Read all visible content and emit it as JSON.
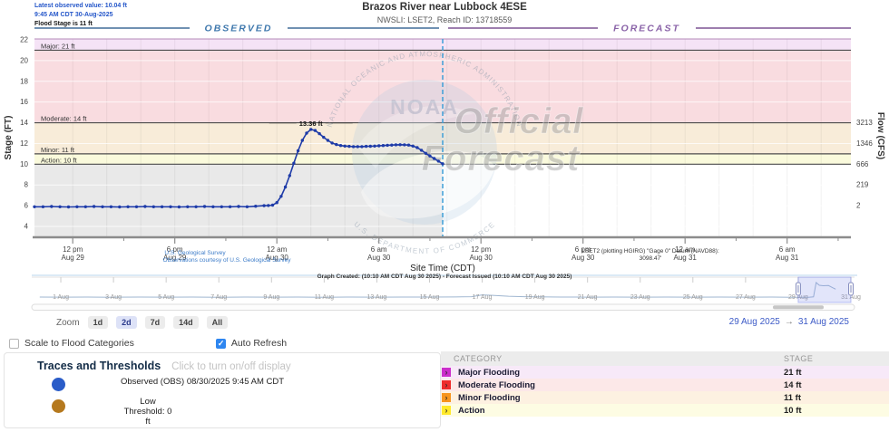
{
  "header": {
    "latest_observed": "Latest observed value: 10.04 ft",
    "latest_time": "9:45 AM CDT 30-Aug-2025",
    "flood_stage": "Flood Stage is 11 ft",
    "title": "Brazos River near Lubbock 4ESE",
    "subtitle": "NWSLI: LSET2, Reach ID: 13718559"
  },
  "annotations": {
    "usgs_link": "U.S. Geological Survey",
    "usgs_credit": "Observations courtesy of U.S. Geological Survey",
    "gage_info": "LSET2 (plotting HGIRG) \"Gage 0\" Datum (NAVD88):",
    "gage_value": "3098.47'",
    "site_time": "Site Time (CDT)",
    "graph_created": "Graph Created: (10:10 AM CDT Aug 30 2025) - Forecast Issued (10:10 AM CDT Aug 30 2025)"
  },
  "chart_data": {
    "type": "line",
    "title": "Brazos River near Lubbock 4ESE",
    "observed_label": "OBSERVED",
    "forecast_label": "FORECAST",
    "ylabel_left": "Stage (FT)",
    "ylabel_right": "Flow (CFS)",
    "xlabel": "Site Time (CDT)",
    "ylim": [
      3,
      22.1
    ],
    "window_hours": 48,
    "divider_hour": 24,
    "stage_ticks": [
      4,
      6,
      8,
      10,
      12,
      14,
      16,
      18,
      20,
      22
    ],
    "flow_ticks": [
      {
        "stage": 14,
        "label": "3213"
      },
      {
        "stage": 12,
        "label": "1346"
      },
      {
        "stage": 10,
        "label": "666"
      },
      {
        "stage": 8,
        "label": "219"
      },
      {
        "stage": 6,
        "label": "2"
      }
    ],
    "x_ticks": [
      {
        "t": 2.25,
        "top": "12 pm",
        "bottom": "Aug 29"
      },
      {
        "t": 8.25,
        "top": "6 pm",
        "bottom": "Aug 29"
      },
      {
        "t": 14.25,
        "top": "12 am",
        "bottom": "Aug 30"
      },
      {
        "t": 20.25,
        "top": "6 am",
        "bottom": "Aug 30"
      },
      {
        "t": 26.25,
        "top": "12 pm",
        "bottom": "Aug 30"
      },
      {
        "t": 32.25,
        "top": "6 pm",
        "bottom": "Aug 30"
      },
      {
        "t": 38.25,
        "top": "12 am",
        "bottom": "Aug 31"
      },
      {
        "t": 44.25,
        "top": "6 am",
        "bottom": "Aug 31"
      }
    ],
    "categories": [
      {
        "name": "Major",
        "stage": 21,
        "label": "Major: 21 ft",
        "band": "#f5e3f6"
      },
      {
        "name": "Moderate",
        "stage": 14,
        "label": "Moderate: 14 ft",
        "band": "#f9dce0"
      },
      {
        "name": "Minor",
        "stage": 11,
        "label": "Minor: 11 ft",
        "band": "#f8ecd9"
      },
      {
        "name": "Action",
        "stage": 10,
        "label": "Action: 10 ft",
        "band": "#fafadc"
      }
    ],
    "below_action_observed_fill": "#e9e9e9",
    "below_action_forecast_fill": "#ffffff",
    "peak_annotation": {
      "t": 16.25,
      "stage": 13.36,
      "label": "13.36 ft"
    },
    "series": [
      {
        "name": "Observed (OBS)",
        "color": "#1e3ba8",
        "points": [
          [
            0,
            5.9
          ],
          [
            0.5,
            5.9
          ],
          [
            1,
            5.92
          ],
          [
            1.5,
            5.9
          ],
          [
            2,
            5.88
          ],
          [
            2.5,
            5.9
          ],
          [
            3,
            5.9
          ],
          [
            3.5,
            5.92
          ],
          [
            4,
            5.9
          ],
          [
            4.5,
            5.9
          ],
          [
            5,
            5.88
          ],
          [
            5.5,
            5.9
          ],
          [
            6,
            5.9
          ],
          [
            6.5,
            5.92
          ],
          [
            7,
            5.9
          ],
          [
            7.5,
            5.9
          ],
          [
            8,
            5.9
          ],
          [
            8.5,
            5.88
          ],
          [
            9,
            5.9
          ],
          [
            9.5,
            5.9
          ],
          [
            10,
            5.92
          ],
          [
            10.5,
            5.9
          ],
          [
            11,
            5.9
          ],
          [
            11.5,
            5.9
          ],
          [
            12,
            5.92
          ],
          [
            12.5,
            5.9
          ],
          [
            13,
            5.95
          ],
          [
            13.5,
            6.0
          ],
          [
            13.75,
            6.02
          ],
          [
            14,
            6.05
          ],
          [
            14.25,
            6.3
          ],
          [
            14.5,
            6.9
          ],
          [
            14.75,
            7.8
          ],
          [
            15,
            8.9
          ],
          [
            15.25,
            10.1
          ],
          [
            15.5,
            11.3
          ],
          [
            15.75,
            12.3
          ],
          [
            16,
            13.0
          ],
          [
            16.25,
            13.36
          ],
          [
            16.5,
            13.25
          ],
          [
            16.75,
            12.95
          ],
          [
            17,
            12.6
          ],
          [
            17.25,
            12.3
          ],
          [
            17.5,
            12.05
          ],
          [
            17.75,
            11.9
          ],
          [
            18,
            11.8
          ],
          [
            18.25,
            11.75
          ],
          [
            18.5,
            11.72
          ],
          [
            18.75,
            11.7
          ],
          [
            19,
            11.7
          ],
          [
            19.25,
            11.7
          ],
          [
            19.5,
            11.72
          ],
          [
            19.75,
            11.73
          ],
          [
            20,
            11.75
          ],
          [
            20.25,
            11.78
          ],
          [
            20.5,
            11.8
          ],
          [
            20.75,
            11.83
          ],
          [
            21,
            11.85
          ],
          [
            21.25,
            11.87
          ],
          [
            21.5,
            11.88
          ],
          [
            21.75,
            11.87
          ],
          [
            22,
            11.85
          ],
          [
            22.25,
            11.75
          ],
          [
            22.5,
            11.6
          ],
          [
            22.75,
            11.35
          ],
          [
            23,
            11.05
          ],
          [
            23.25,
            10.8
          ],
          [
            23.5,
            10.55
          ],
          [
            23.75,
            10.3
          ],
          [
            24,
            10.04
          ]
        ]
      }
    ],
    "watermark": {
      "noaa_label": "NOAA",
      "arc_top": "NATIONAL OCEANIC AND ATMOSPHERIC ADMINISTRATION",
      "arc_bottom": "U.S. DEPARTMENT OF COMMERCE",
      "stamp_line1": "Official",
      "stamp_line2": "Forecast"
    }
  },
  "overview": {
    "day_labels": [
      {
        "d": 1,
        "label": "1 Aug"
      },
      {
        "d": 3,
        "label": "3 Aug"
      },
      {
        "d": 5,
        "label": "5 Aug"
      },
      {
        "d": 7,
        "label": "7 Aug"
      },
      {
        "d": 9,
        "label": "9 Aug"
      },
      {
        "d": 11,
        "label": "11 Aug"
      },
      {
        "d": 13,
        "label": "13 Aug"
      },
      {
        "d": 15,
        "label": "15 Aug"
      },
      {
        "d": 17,
        "label": "17 Aug"
      },
      {
        "d": 19,
        "label": "19 Aug"
      },
      {
        "d": 21,
        "label": "21 Aug"
      },
      {
        "d": 23,
        "label": "23 Aug"
      },
      {
        "d": 25,
        "label": "25 Aug"
      },
      {
        "d": 27,
        "label": "27 Aug"
      },
      {
        "d": 29,
        "label": "29 Aug"
      },
      {
        "d": 31,
        "label": "31 Aug"
      }
    ],
    "points": [
      [
        0.2,
        6
      ],
      [
        1,
        5.95
      ],
      [
        2,
        6
      ],
      [
        3,
        5.9
      ],
      [
        4,
        6
      ],
      [
        5,
        5.95
      ],
      [
        6,
        6
      ],
      [
        7,
        5.9
      ],
      [
        8,
        6
      ],
      [
        9,
        5.95
      ],
      [
        10,
        6
      ],
      [
        11,
        5.9
      ],
      [
        12,
        6
      ],
      [
        13,
        5.95
      ],
      [
        14,
        6
      ],
      [
        15,
        6
      ],
      [
        16,
        6.05
      ],
      [
        16.6,
        6.2
      ],
      [
        17,
        7.1
      ],
      [
        17.4,
        6.9
      ],
      [
        18,
        6.4
      ],
      [
        18.6,
        6.2
      ],
      [
        19,
        6.1
      ],
      [
        20,
        6
      ],
      [
        21,
        5.95
      ],
      [
        22,
        6
      ],
      [
        23,
        5.95
      ],
      [
        24,
        6
      ],
      [
        25,
        5.95
      ],
      [
        26,
        6
      ],
      [
        27,
        5.95
      ],
      [
        28,
        6
      ],
      [
        28.8,
        5.9
      ],
      [
        29.4,
        5.9
      ],
      [
        29.58,
        6.1
      ],
      [
        29.68,
        13.4
      ],
      [
        29.8,
        12.0
      ],
      [
        29.95,
        11.8
      ],
      [
        30.15,
        11.9
      ],
      [
        30.3,
        10.8
      ],
      [
        30.42,
        10.04
      ]
    ],
    "selection": {
      "start_day": 29,
      "end_day": 31
    }
  },
  "zoom_controls": {
    "label": "Zoom",
    "buttons": [
      {
        "label": "1d",
        "active": false
      },
      {
        "label": "2d",
        "active": true
      },
      {
        "label": "7d",
        "active": false
      },
      {
        "label": "14d",
        "active": false
      },
      {
        "label": "All",
        "active": false
      }
    ]
  },
  "range": {
    "start": "29 Aug 2025",
    "arrow": "→",
    "end": "31 Aug 2025"
  },
  "options": {
    "scale_label": "Scale to Flood Categories",
    "scale_checked": false,
    "auto_label": "Auto Refresh",
    "auto_checked": true
  },
  "legend": {
    "title": "Traces and Thresholds",
    "subtitle": "Click to turn on/off display",
    "items": [
      {
        "label": "Observed (OBS) 08/30/2025 9:45 AM CDT",
        "color": "#2a5cc8"
      },
      {
        "label": "Low Threshold: 0 ft",
        "color": "#b5791e"
      }
    ]
  },
  "table": {
    "headers": [
      "CATEGORY",
      "STAGE"
    ],
    "rows": [
      {
        "category": "Major Flooding",
        "stage": "21 ft",
        "icon_color": "#cb2ecb",
        "row_bg": "#f7e9f8"
      },
      {
        "category": "Moderate Flooding",
        "stage": "14 ft",
        "icon_color": "#ee2b2b",
        "row_bg": "#fce8e8"
      },
      {
        "category": "Minor Flooding",
        "stage": "11 ft",
        "icon_color": "#f7941d",
        "row_bg": "#fdf1e1"
      },
      {
        "category": "Action",
        "stage": "10 ft",
        "icon_color": "#ffe92a",
        "row_bg": "#fdfce3"
      }
    ]
  }
}
